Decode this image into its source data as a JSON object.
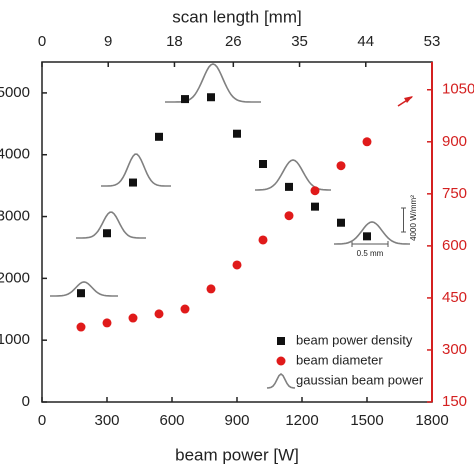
{
  "chart_data": {
    "type": "scatter",
    "xlabel": "beam power [W]",
    "x2label": "scan length [mm]",
    "xlim": [
      0,
      1800
    ],
    "xticks": [
      0,
      300,
      600,
      900,
      1200,
      1500,
      1800
    ],
    "x2lim": [
      0,
      53
    ],
    "x2ticks": [
      0,
      9,
      18,
      26,
      35,
      44,
      53
    ],
    "ylim": [
      0,
      5500
    ],
    "yticks": [
      0,
      1000,
      2000,
      3000,
      4000,
      5000
    ],
    "y2lim": [
      150,
      1130
    ],
    "y2ticks": [
      150,
      300,
      450,
      600,
      750,
      900,
      1050
    ],
    "y2color": "#d42020",
    "x": [
      180,
      300,
      420,
      540,
      660,
      780,
      900,
      1020,
      1140,
      1260,
      1380,
      1500
    ],
    "series": [
      {
        "name": "beam power density",
        "color": "#111111",
        "marker": "square",
        "values": [
          1760,
          2730,
          3550,
          4290,
          4900,
          4930,
          4340,
          3850,
          3480,
          3160,
          2900,
          2680
        ]
      },
      {
        "name": "beam diameter",
        "color": "#e01a1a",
        "marker": "circle",
        "axis": "y2",
        "values": [
          366,
          378,
          392,
          404,
          418,
          476,
          545,
          617,
          687,
          759,
          831,
          900
        ]
      }
    ],
    "annotations": {
      "gaussian_legend": "gaussian beam power",
      "gaussian_color": "#808080",
      "scale_power": "4000 W/mm²",
      "scale_length": "0.5 mm"
    }
  }
}
